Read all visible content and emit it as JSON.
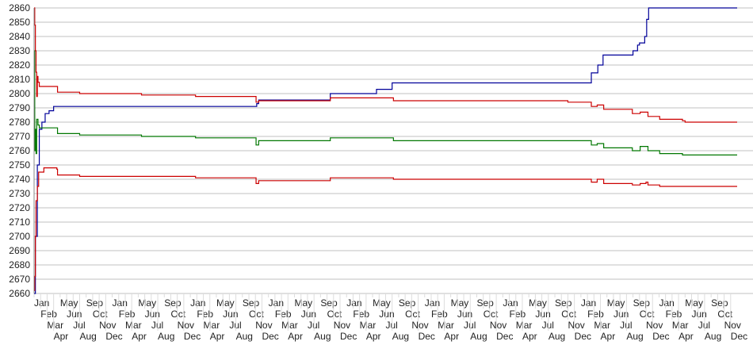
{
  "chart_data": {
    "type": "line",
    "title": "",
    "xlabel": "",
    "ylabel": "",
    "xlim": [
      0,
      108
    ],
    "ylim": [
      2660,
      2860
    ],
    "y_ticks": [
      2660,
      2670,
      2680,
      2690,
      2700,
      2710,
      2720,
      2730,
      2740,
      2750,
      2760,
      2770,
      2780,
      2790,
      2800,
      2810,
      2820,
      2830,
      2840,
      2850,
      2860
    ],
    "grid": true,
    "legend": "none",
    "x_tick_labels": [
      "Jan",
      "Feb",
      "Mar",
      "Apr",
      "May",
      "Jun",
      "Jul",
      "Aug",
      "Sep",
      "Oct",
      "Nov",
      "Dec",
      "Jan",
      "Feb",
      "Mar",
      "Apr",
      "May",
      "Jun",
      "Jul",
      "Aug",
      "Sep",
      "Oct",
      "Nov",
      "Dec",
      "Jan",
      "Feb",
      "Mar",
      "Apr",
      "May",
      "Jun",
      "Jul",
      "Aug",
      "Sep",
      "Oct",
      "Nov",
      "Dec",
      "Jan",
      "Feb",
      "Mar",
      "Apr",
      "May",
      "Jun",
      "Jul",
      "Aug",
      "Sep",
      "Oct",
      "Nov",
      "Dec",
      "Jan",
      "Feb",
      "Mar",
      "Apr",
      "May",
      "Jun",
      "Jul",
      "Aug",
      "Sep",
      "Oct",
      "Nov",
      "Dec",
      "Jan",
      "Feb",
      "Mar",
      "Apr",
      "May",
      "Jun",
      "Jul",
      "Aug",
      "Sep",
      "Oct",
      "Nov",
      "Dec",
      "Jan",
      "Feb",
      "Mar",
      "Apr",
      "May",
      "Jun",
      "Jul",
      "Aug",
      "Sep",
      "Oct",
      "Nov",
      "Dec",
      "Jan",
      "Feb",
      "Mar",
      "Apr",
      "May",
      "Jun",
      "Jul",
      "Aug",
      "Sep",
      "Oct",
      "Nov",
      "Dec",
      "Jan",
      "Feb",
      "Mar",
      "Apr",
      "May",
      "Jun",
      "Jul",
      "Aug",
      "Sep",
      "Oct",
      "Nov",
      "Dec"
    ],
    "series": [
      {
        "color": "#000099",
        "points": [
          [
            0,
            2660
          ],
          [
            0.2,
            2700
          ],
          [
            0.5,
            2750
          ],
          [
            0.8,
            2775
          ],
          [
            1.2,
            2780
          ],
          [
            1.7,
            2786
          ],
          [
            2.3,
            2788
          ],
          [
            3.0,
            2791
          ],
          [
            33.9,
            2791
          ],
          [
            34.2,
            2793
          ],
          [
            34.5,
            2795.5
          ],
          [
            45.1,
            2795.5
          ],
          [
            45.5,
            2800
          ],
          [
            52.4,
            2800
          ],
          [
            52.6,
            2803
          ],
          [
            54.6,
            2803
          ],
          [
            55,
            2807.5
          ],
          [
            85.4,
            2807.5
          ],
          [
            85.6,
            2814.5
          ],
          [
            86.5,
            2814.5
          ],
          [
            86.6,
            2820
          ],
          [
            87.3,
            2820
          ],
          [
            87.4,
            2827
          ],
          [
            91.8,
            2827
          ],
          [
            92.0,
            2830
          ],
          [
            92.7,
            2834
          ],
          [
            93.0,
            2835.5
          ],
          [
            93.6,
            2835.5
          ],
          [
            93.8,
            2840
          ],
          [
            94.1,
            2852
          ],
          [
            94.4,
            2860
          ],
          [
            108,
            2860
          ]
        ]
      },
      {
        "color": "#cc0000",
        "points": [
          [
            0,
            2860
          ],
          [
            0.1,
            2848
          ],
          [
            0.2,
            2830
          ],
          [
            0.3,
            2815
          ],
          [
            0.4,
            2798
          ],
          [
            0.5,
            2812
          ],
          [
            0.6,
            2808
          ],
          [
            0.8,
            2805
          ],
          [
            3.5,
            2805
          ],
          [
            3.6,
            2801
          ],
          [
            6.8,
            2801
          ],
          [
            7,
            2800
          ],
          [
            16.3,
            2800
          ],
          [
            16.5,
            2799
          ],
          [
            24.6,
            2799
          ],
          [
            24.8,
            2798
          ],
          [
            33.9,
            2798
          ],
          [
            34.1,
            2794
          ],
          [
            34.5,
            2795
          ],
          [
            45.1,
            2795
          ],
          [
            45.5,
            2797
          ],
          [
            55,
            2797
          ],
          [
            55.2,
            2795
          ],
          [
            81.8,
            2795
          ],
          [
            82,
            2794
          ],
          [
            85.4,
            2794
          ],
          [
            85.6,
            2791
          ],
          [
            86.5,
            2792
          ],
          [
            87.4,
            2792
          ],
          [
            87.5,
            2789
          ],
          [
            91.5,
            2789
          ],
          [
            91.9,
            2786
          ],
          [
            93.1,
            2787
          ],
          [
            94,
            2787
          ],
          [
            94.3,
            2784
          ],
          [
            96.1,
            2782
          ],
          [
            99.6,
            2781
          ],
          [
            100,
            2780
          ],
          [
            108,
            2780
          ]
        ]
      },
      {
        "color": "#007700",
        "points": [
          [
            0,
            2830
          ],
          [
            0.1,
            2760
          ],
          [
            0.2,
            2775
          ],
          [
            0.3,
            2758
          ],
          [
            0.4,
            2782
          ],
          [
            0.6,
            2778
          ],
          [
            0.8,
            2776
          ],
          [
            3.5,
            2776
          ],
          [
            3.6,
            2772
          ],
          [
            6.8,
            2772
          ],
          [
            7,
            2771
          ],
          [
            16.3,
            2771
          ],
          [
            16.5,
            2770
          ],
          [
            24.6,
            2770
          ],
          [
            24.8,
            2769
          ],
          [
            33.9,
            2769
          ],
          [
            34.1,
            2764
          ],
          [
            34.5,
            2767
          ],
          [
            45.1,
            2767
          ],
          [
            45.5,
            2769
          ],
          [
            55,
            2769
          ],
          [
            55.2,
            2767
          ],
          [
            85.4,
            2767
          ],
          [
            85.6,
            2764
          ],
          [
            86.5,
            2765
          ],
          [
            87.4,
            2765
          ],
          [
            87.5,
            2762
          ],
          [
            91.5,
            2762
          ],
          [
            91.9,
            2760
          ],
          [
            93.1,
            2763
          ],
          [
            94,
            2763
          ],
          [
            94.3,
            2760
          ],
          [
            96.1,
            2758
          ],
          [
            99.6,
            2757
          ],
          [
            108,
            2757
          ]
        ]
      },
      {
        "color": "#cc0000",
        "points": [
          [
            0,
            2662
          ],
          [
            0.1,
            2672
          ],
          [
            0.2,
            2700
          ],
          [
            0.3,
            2725
          ],
          [
            0.5,
            2735
          ],
          [
            0.7,
            2745
          ],
          [
            1.5,
            2748
          ],
          [
            3.5,
            2747
          ],
          [
            3.6,
            2743
          ],
          [
            6.8,
            2743
          ],
          [
            7,
            2742
          ],
          [
            24.6,
            2742
          ],
          [
            24.8,
            2741
          ],
          [
            33.9,
            2741
          ],
          [
            34.1,
            2737
          ],
          [
            34.5,
            2739
          ],
          [
            45.1,
            2739
          ],
          [
            45.5,
            2741
          ],
          [
            55,
            2741
          ],
          [
            55.2,
            2740
          ],
          [
            85.4,
            2740
          ],
          [
            85.6,
            2738
          ],
          [
            86.5,
            2740
          ],
          [
            87.4,
            2740
          ],
          [
            87.5,
            2737
          ],
          [
            91.5,
            2737
          ],
          [
            91.9,
            2736
          ],
          [
            93.1,
            2737
          ],
          [
            94,
            2738
          ],
          [
            94.3,
            2736
          ],
          [
            96.1,
            2735
          ],
          [
            108,
            2735
          ]
        ]
      }
    ]
  }
}
